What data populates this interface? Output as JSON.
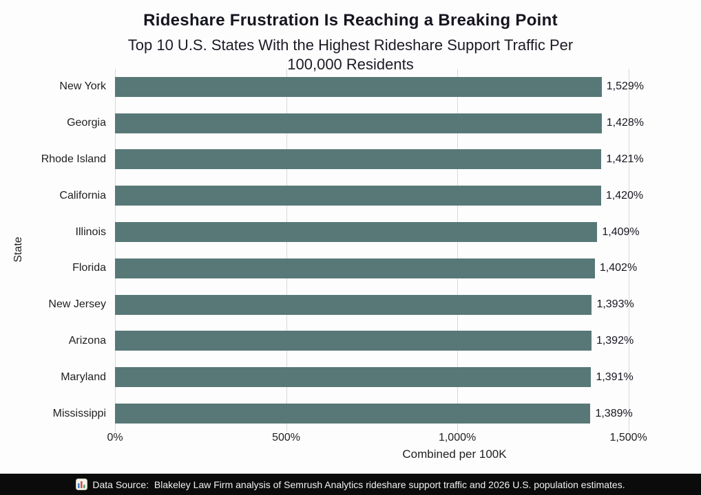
{
  "header": {
    "title": "Rideshare Frustration Is Reaching a Breaking Point",
    "subtitle": "Top 10 U.S. States With the Highest Rideshare Support Traffic Per\n100,000 Residents"
  },
  "chart_data": {
    "type": "bar",
    "orientation": "horizontal",
    "categories": [
      "New York",
      "Georgia",
      "Rhode Island",
      "California",
      "Illinois",
      "Florida",
      "New Jersey",
      "Arizona",
      "Maryland",
      "Mississippi"
    ],
    "values": [
      1529,
      1428,
      1421,
      1420,
      1409,
      1402,
      1393,
      1392,
      1391,
      1389
    ],
    "value_labels": [
      "1,529%",
      "1,428%",
      "1,421%",
      "1,420%",
      "1,409%",
      "1,402%",
      "1,393%",
      "1,392%",
      "1,391%",
      "1,389%"
    ],
    "title": "Rideshare Frustration Is Reaching a Breaking Point",
    "xlabel": "Combined per 100K",
    "ylabel": "State",
    "x_ticks": [
      0,
      500,
      1000,
      1500
    ],
    "x_tick_labels": [
      "0%",
      "500%",
      "1,000%",
      "1,500%"
    ],
    "xlim": [
      0,
      1545
    ],
    "grid": "vertical",
    "legend": "none",
    "bar_color": "#577876",
    "gridline_color": "#d8d8d8"
  },
  "footer": {
    "icon": "bar-chart-emoji",
    "text": "Data Source:  Blakeley Law Firm analysis of Semrush Analytics rideshare support traffic and 2026 U.S. population estimates."
  },
  "colors": {
    "background": "#fdfdfd",
    "title_text": "#15151f",
    "label_text": "#1f1f1f",
    "footer_bg": "#0b0b0b",
    "footer_text": "#f2f2f2"
  }
}
